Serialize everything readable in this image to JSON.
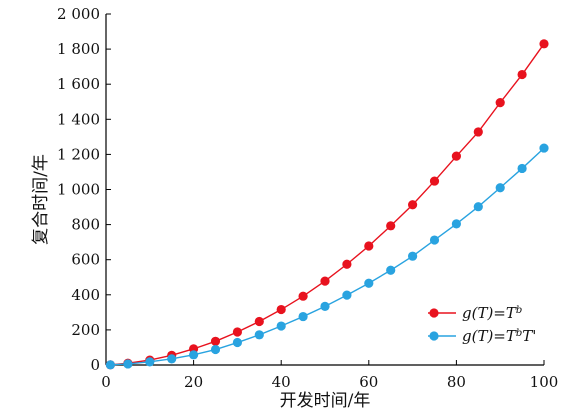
{
  "chart_data": {
    "type": "line",
    "xlabel": "开发时间/年",
    "ylabel": "复合时间/年",
    "xlim": [
      0,
      100
    ],
    "ylim": [
      0,
      2000
    ],
    "xticks": [
      "0",
      "20",
      "40",
      "60",
      "80",
      "100"
    ],
    "yticks": [
      "0",
      "200",
      "400",
      "600",
      "800",
      "1 000",
      "1 200",
      "1 400",
      "1 600",
      "1 800",
      "2 000"
    ],
    "grid": false,
    "legend_position": "bottom-right",
    "x": [
      1,
      5,
      10,
      15,
      20,
      25,
      30,
      35,
      40,
      45,
      50,
      55,
      60,
      65,
      70,
      75,
      80,
      85,
      90,
      95,
      100
    ],
    "series": [
      {
        "name": "g(T)=T^b",
        "legend_parts": [
          {
            "t": "g(T)=T",
            "sup": false
          },
          {
            "t": "b",
            "sup": true
          }
        ],
        "color": "#e8121e",
        "values": [
          1,
          10,
          28,
          55,
          92,
          135,
          188,
          248,
          316,
          392,
          478,
          574,
          678,
          793,
          913,
          1048,
          1190,
          1328,
          1495,
          1655,
          1830
        ]
      },
      {
        "name": "g(T)=T^bT'",
        "legend_parts": [
          {
            "t": "g(T)=T",
            "sup": false
          },
          {
            "t": "b",
            "sup": true
          },
          {
            "t": "T'",
            "sup": false
          }
        ],
        "color": "#29a3e0",
        "values": [
          1,
          6,
          18,
          35,
          58,
          88,
          128,
          172,
          222,
          276,
          334,
          398,
          466,
          540,
          620,
          712,
          804,
          902,
          1010,
          1120,
          1236
        ]
      }
    ]
  }
}
